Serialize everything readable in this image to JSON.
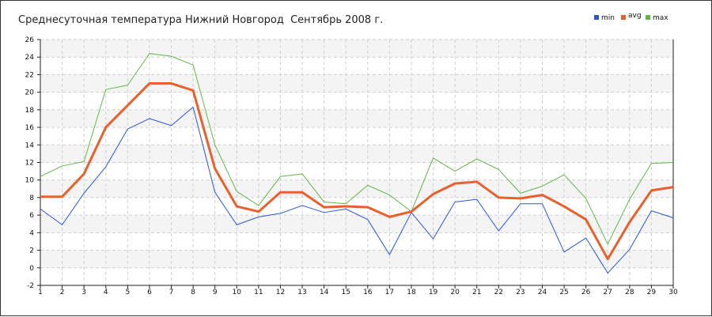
{
  "chart_data": {
    "type": "line",
    "title": "Среднесуточная температура Нижний Новгород  Сентябрь 2008 г.",
    "xlabel": "",
    "ylabel": "",
    "x": [
      1,
      2,
      3,
      4,
      5,
      6,
      7,
      8,
      9,
      10,
      11,
      12,
      13,
      14,
      15,
      16,
      17,
      18,
      19,
      20,
      21,
      22,
      23,
      24,
      25,
      26,
      27,
      28,
      29,
      30
    ],
    "xlim": [
      1,
      30
    ],
    "ylim": [
      -2,
      26
    ],
    "yticks": [
      -2,
      0,
      2,
      4,
      6,
      8,
      10,
      12,
      14,
      16,
      18,
      20,
      22,
      24,
      26
    ],
    "grid": true,
    "legend_position": "top-right",
    "series": [
      {
        "name": "min",
        "color": "#2a55d8",
        "values": [
          6.7,
          4.9,
          8.5,
          11.5,
          15.8,
          17.0,
          16.2,
          18.3,
          8.6,
          4.9,
          5.8,
          6.2,
          7.1,
          6.3,
          6.7,
          5.5,
          1.5,
          6.3,
          3.3,
          7.5,
          7.8,
          4.2,
          7.3,
          7.3,
          1.8,
          3.4,
          -0.6,
          2.1,
          6.5,
          5.7
        ]
      },
      {
        "name": "avg",
        "color": "#e8602c",
        "values": [
          8.1,
          8.1,
          10.7,
          16.0,
          18.5,
          21.0,
          21.0,
          20.2,
          11.3,
          7.0,
          6.4,
          8.6,
          8.6,
          6.9,
          7.0,
          6.9,
          5.8,
          6.4,
          8.4,
          9.6,
          9.8,
          8.0,
          7.9,
          8.3,
          7.0,
          5.5,
          1.0,
          5.2,
          8.8,
          9.2
        ]
      },
      {
        "name": "max",
        "color": "#5fb845",
        "values": [
          10.4,
          11.6,
          12.1,
          20.3,
          20.8,
          24.4,
          24.1,
          23.1,
          14.0,
          8.7,
          7.1,
          10.4,
          10.7,
          7.5,
          7.3,
          9.4,
          8.3,
          6.4,
          12.5,
          11.0,
          12.4,
          11.2,
          8.5,
          9.3,
          10.6,
          7.9,
          2.7,
          7.8,
          11.9,
          12.0
        ]
      }
    ]
  }
}
